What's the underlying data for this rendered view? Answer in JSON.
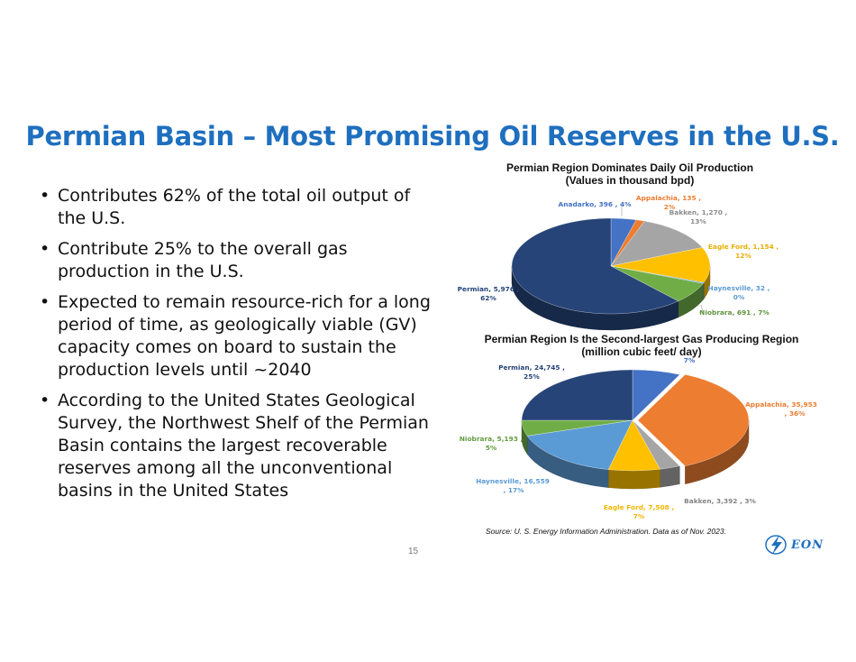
{
  "slide": {
    "title": "Permian Basin – Most Promising Oil Reserves in the U.S.",
    "page_number": "15",
    "source": "Source: U. S. Energy Information Administration. Data as of Nov. 2023.",
    "logo_text": "EON"
  },
  "bullets": [
    "Contributes 62% of the total oil output of the U.S.",
    "Contribute 25% to the overall gas production in the U.S.",
    "Expected to remain resource-rich for a long period of time, as geologically viable (GV) capacity comes on board to sustain the production levels until ~2040",
    "According to the United States Geological Survey, the Northwest Shelf of the Permian Basin contains the largest recoverable reserves among all the unconventional basins in the United States"
  ],
  "chart_data": [
    {
      "type": "pie",
      "title": "Permian Region Dominates Daily Oil Production",
      "subtitle": "(Values in thousand bpd)",
      "slices": [
        {
          "name": "Anadarko",
          "value": 396,
          "percent": "4%",
          "color": "#4472c4"
        },
        {
          "name": "Appalachia",
          "value": 135,
          "percent": "2%",
          "color": "#ed7d31"
        },
        {
          "name": "Bakken",
          "value": 1270,
          "percent": "13%",
          "color": "#a5a5a5"
        },
        {
          "name": "Eagle Ford",
          "value": 1154,
          "percent": "12%",
          "color": "#ffc000"
        },
        {
          "name": "Haynesville",
          "value": 32,
          "percent": "0%",
          "color": "#5b9bd5"
        },
        {
          "name": "Niobrara",
          "value": 691,
          "percent": "7%",
          "color": "#70ad47"
        },
        {
          "name": "Permian",
          "value": 5976,
          "percent": "62%",
          "color": "#264478"
        }
      ],
      "labels": [
        {
          "line1": "Anadarko,  396 ,  4%",
          "line2": ""
        },
        {
          "line1": "Appalachia,  135 ,",
          "line2": "2%"
        },
        {
          "line1": "Bakken,  1,270 ,",
          "line2": "13%"
        },
        {
          "line1": "Eagle Ford,  1,154 ,",
          "line2": "12%"
        },
        {
          "line1": "Haynesville,  32 ,",
          "line2": "0%"
        },
        {
          "line1": "Niobrara,  691 , 7%",
          "line2": ""
        },
        {
          "line1": "Permian,  5,976 ,",
          "line2": "62%"
        }
      ]
    },
    {
      "type": "pie",
      "title": "Permian Region Is the Second-largest Gas Producing Region",
      "subtitle": "(million cubic feet/ day)",
      "slices": [
        {
          "name": "Anadarko",
          "percent": "7%",
          "color": "#4472c4"
        },
        {
          "name": "Appalachia",
          "value": 35953,
          "percent": "36%",
          "color": "#ed7d31"
        },
        {
          "name": "Bakken",
          "value": 3392,
          "percent": "3%",
          "color": "#a5a5a5"
        },
        {
          "name": "Eagle Ford",
          "value": 7508,
          "percent": "7%",
          "color": "#ffc000"
        },
        {
          "name": "Haynesville",
          "value": 16559,
          "percent": "17%",
          "color": "#5b9bd5"
        },
        {
          "name": "Niobrara",
          "value": 5193,
          "percent": "5%",
          "color": "#70ad47"
        },
        {
          "name": "Permian",
          "value": 24745,
          "percent": "25%",
          "color": "#264478"
        }
      ],
      "labels": [
        {
          "line1": "7%",
          "line2": ""
        },
        {
          "line1": "Appalachia,  35,953",
          "line2": ", 36%"
        },
        {
          "line1": "Bakken,  3,392 , 3%",
          "line2": ""
        },
        {
          "line1": "Eagle Ford,  7,508 ,",
          "line2": "7%"
        },
        {
          "line1": "Haynesville,  16,559",
          "line2": ", 17%"
        },
        {
          "line1": "Niobrara,  5,193 ,",
          "line2": "5%"
        },
        {
          "line1": "Permian,  24,745 ,",
          "line2": "25%"
        }
      ]
    }
  ]
}
